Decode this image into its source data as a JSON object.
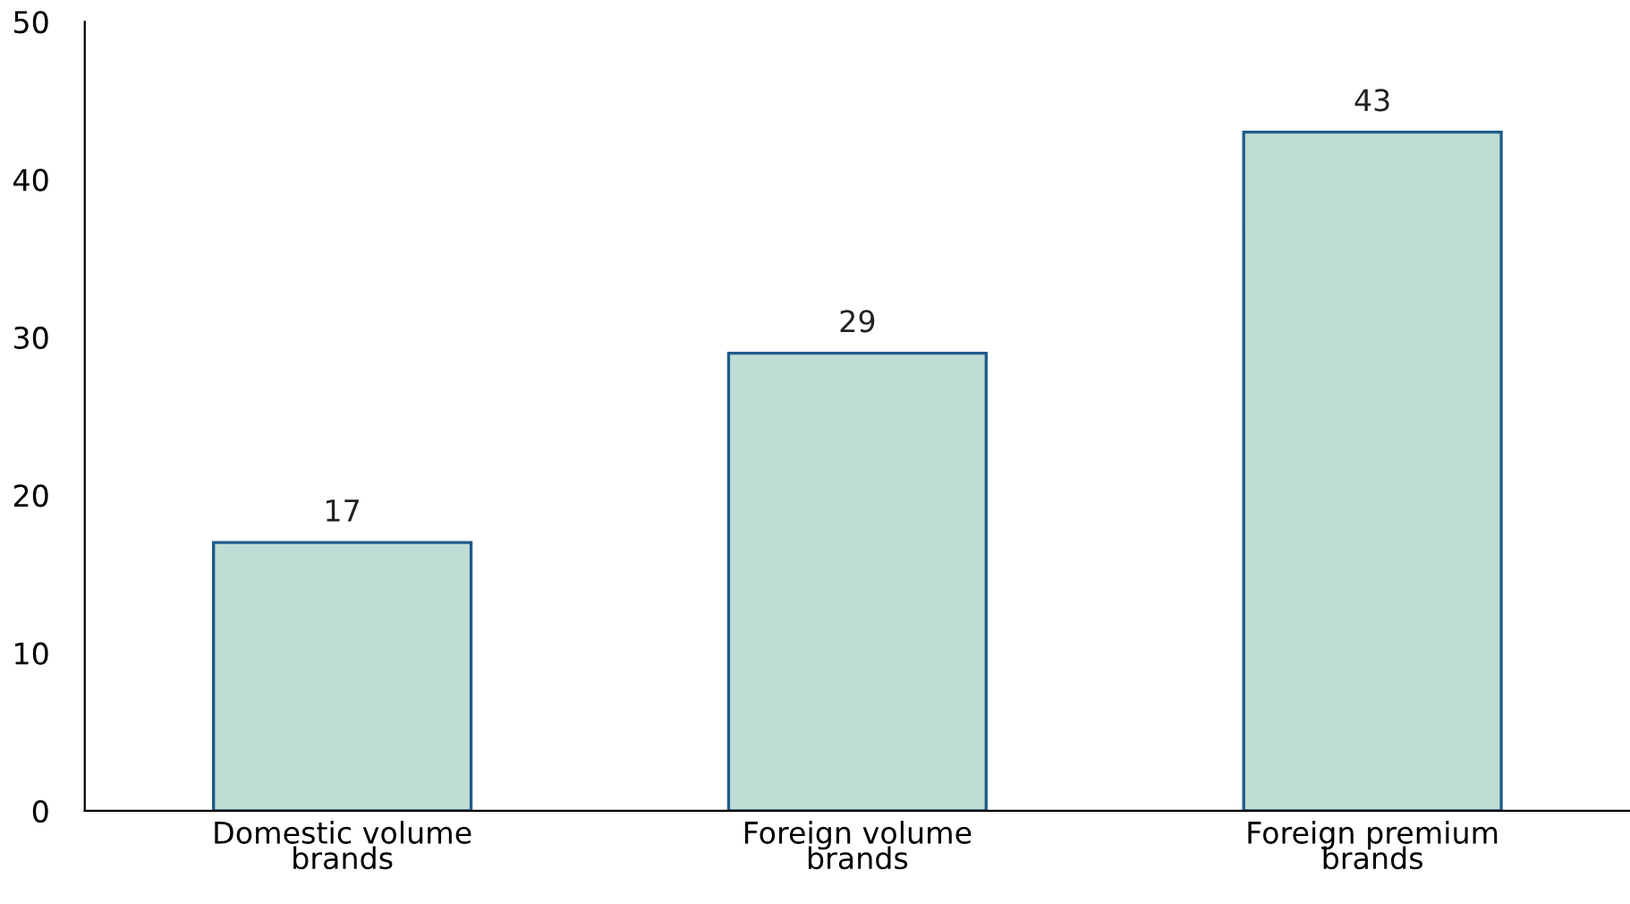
{
  "chart_data": {
    "type": "bar",
    "categories": [
      "Domestic volume brands",
      "Foreign volume brands",
      "Foreign premium brands"
    ],
    "values": [
      17,
      29,
      43
    ],
    "color": "#c0ddd5",
    "ylim": [
      0,
      50
    ],
    "yticks": [
      0,
      10,
      20,
      30,
      40,
      50
    ],
    "data_labels": true,
    "grid": false,
    "legend": false
  }
}
